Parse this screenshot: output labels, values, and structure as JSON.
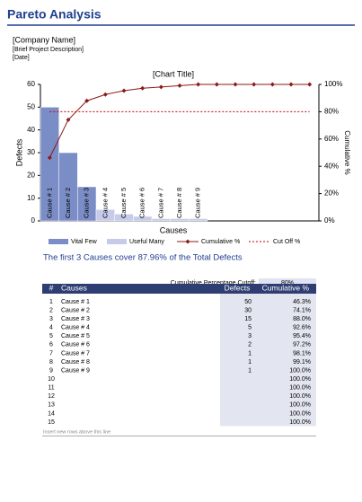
{
  "header": {
    "title": "Pareto Analysis",
    "company": "[Company Name]",
    "description": "[Brief Project Description]",
    "date": "[Date]"
  },
  "chart_data": {
    "type": "bar",
    "title": "[Chart Title]",
    "x_label": "Causes",
    "y_label": "Defects",
    "y2_label": "Cumulative %",
    "categories": [
      "Cause # 1",
      "Cause # 2",
      "Cause # 3",
      "Cause # 4",
      "Cause # 5",
      "Cause # 6",
      "Cause # 7",
      "Cause # 8",
      "Cause # 9",
      null,
      null,
      null,
      null,
      null,
      null
    ],
    "series": [
      {
        "name": "Vital Few",
        "type": "bar",
        "color": "#7b8dc6",
        "values": [
          50,
          30,
          15,
          null,
          null,
          null,
          null,
          null,
          null,
          null,
          null,
          null,
          null,
          null,
          null
        ]
      },
      {
        "name": "Useful Many",
        "type": "bar",
        "color": "#c5cbe9",
        "values": [
          null,
          null,
          null,
          5,
          3,
          2,
          1,
          1,
          1,
          null,
          null,
          null,
          null,
          null,
          null
        ]
      },
      {
        "name": "Cumulative %",
        "type": "line",
        "axis": "y2",
        "color": "#8b1a1a",
        "marker": "diamond",
        "values": [
          46.3,
          74.1,
          88.0,
          92.6,
          95.4,
          97.2,
          98.1,
          99.1,
          100,
          100,
          100,
          100,
          100,
          100,
          100
        ]
      },
      {
        "name": "Cut Off %",
        "type": "line",
        "axis": "y2",
        "color": "#cc0000",
        "dash": "dotted",
        "values": [
          80,
          80,
          80,
          80,
          80,
          80,
          80,
          80,
          80,
          80,
          80,
          80,
          80,
          80,
          80
        ]
      }
    ],
    "ylim": [
      0,
      60
    ],
    "yticks": [
      0,
      10,
      20,
      30,
      40,
      50,
      60
    ],
    "y2lim": [
      0,
      100
    ],
    "y2ticks": [
      {
        "value": 0,
        "label": "0%"
      },
      {
        "value": 20,
        "label": "20%"
      },
      {
        "value": 40,
        "label": "40%"
      },
      {
        "value": 60,
        "label": "60%"
      },
      {
        "value": 80,
        "label": "80%"
      },
      {
        "value": 100,
        "label": "100%"
      }
    ],
    "grid": false,
    "legend": "bottom"
  },
  "summary": "The first 3 Causes cover 87.96% of the Total Defects",
  "cutoff": {
    "label": "Cumulative Percentage Cutoff:",
    "value": "80%"
  },
  "table": {
    "columns": [
      "#",
      "Causes",
      "Defects",
      "Cumulative %"
    ],
    "rows": [
      {
        "n": 1,
        "cause": "Cause # 1",
        "defects": 50,
        "cumulative": "46.3%"
      },
      {
        "n": 2,
        "cause": "Cause # 2",
        "defects": 30,
        "cumulative": "74.1%"
      },
      {
        "n": 3,
        "cause": "Cause # 3",
        "defects": 15,
        "cumulative": "88.0%"
      },
      {
        "n": 4,
        "cause": "Cause # 4",
        "defects": 5,
        "cumulative": "92.6%"
      },
      {
        "n": 5,
        "cause": "Cause # 5",
        "defects": 3,
        "cumulative": "95.4%"
      },
      {
        "n": 6,
        "cause": "Cause # 6",
        "defects": 2,
        "cumulative": "97.2%"
      },
      {
        "n": 7,
        "cause": "Cause # 7",
        "defects": 1,
        "cumulative": "98.1%"
      },
      {
        "n": 8,
        "cause": "Cause # 8",
        "defects": 1,
        "cumulative": "99.1%"
      },
      {
        "n": 9,
        "cause": "Cause # 9",
        "defects": 1,
        "cumulative": "100.0%"
      },
      {
        "n": 10,
        "cumulative": "100.0%"
      },
      {
        "n": 11,
        "cumulative": "100.0%"
      },
      {
        "n": 12,
        "cumulative": "100.0%"
      },
      {
        "n": 13,
        "cumulative": "100.0%"
      },
      {
        "n": 14,
        "cumulative": "100.0%"
      },
      {
        "n": 15,
        "cumulative": "100.0%"
      }
    ],
    "footer": "Insert new rows above this line"
  }
}
